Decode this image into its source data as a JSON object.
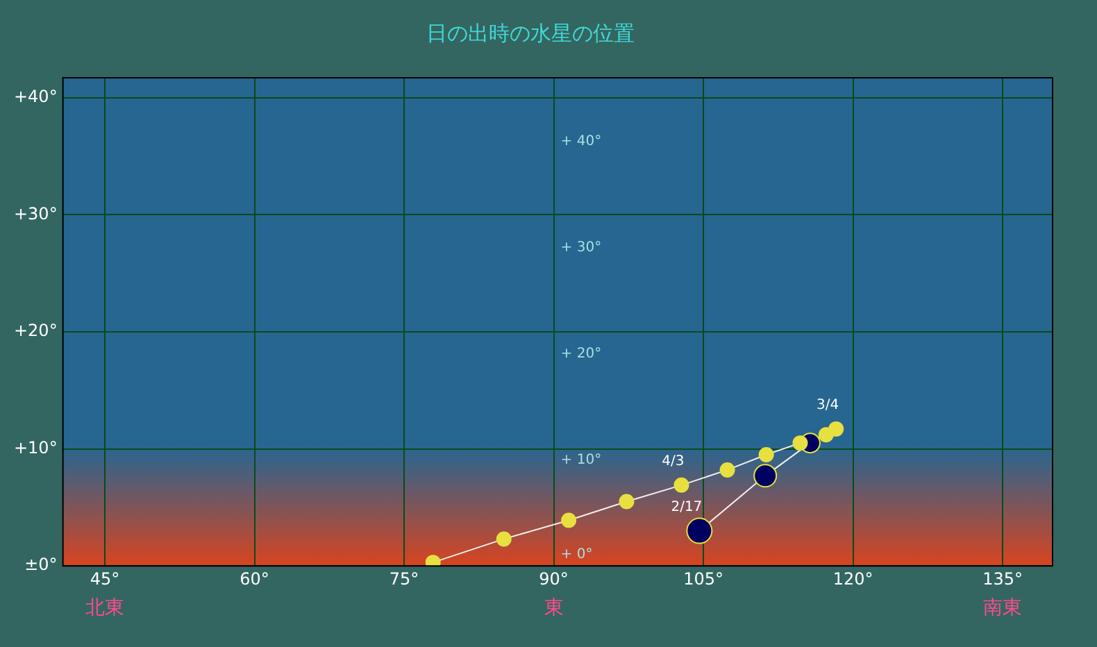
{
  "chart_data": {
    "type": "line",
    "title": "日の出時の水星の位置",
    "x": [
      104.6,
      111.2,
      115.7,
      118.3,
      117.3,
      114.7,
      111.3,
      107.4,
      102.8,
      97.3,
      91.5,
      85.0,
      77.9
    ],
    "series": [
      {
        "color": "#f0f0f0",
        "values": [
          3.0,
          7.7,
          10.5,
          11.7,
          11.2,
          10.5,
          9.5,
          8.2,
          6.9,
          5.5,
          3.9,
          2.3,
          0.3
        ],
        "colors": [
          "#000060",
          "#000060",
          "#000060",
          "#e8e040",
          "#e8e040",
          "#e8e040",
          "#e8e040",
          "#e8e040",
          "#e8e040",
          "#e8e040",
          "#e8e040",
          "#e8e040",
          "#e8e040"
        ]
      }
    ],
    "xlim": [
      40.8,
      140
    ],
    "xticks": [
      {
        "value": 45,
        "label": "45°"
      },
      {
        "value": 60,
        "label": "60°"
      },
      {
        "value": 75,
        "label": "75°"
      },
      {
        "value": 90,
        "label": "90°"
      },
      {
        "value": 105,
        "label": "105°"
      },
      {
        "value": 120,
        "label": "120°"
      },
      {
        "value": 135,
        "label": "135°"
      }
    ],
    "ylim": [
      0,
      41.7
    ],
    "yticks": [
      {
        "value": 0,
        "label": "±0°"
      },
      {
        "value": 10,
        "label": "+10°"
      },
      {
        "value": 20,
        "label": "+20°"
      },
      {
        "value": 30,
        "label": "+30°"
      },
      {
        "value": 40,
        "label": "+40°"
      }
    ],
    "y2lim": [
      0,
      46
    ],
    "y2ticks": [
      {
        "value": 0,
        "label": "+ 0°"
      },
      {
        "value": 10,
        "label": "+ 10°"
      },
      {
        "value": 20,
        "label": "+ 20°"
      },
      {
        "value": 30,
        "label": "+ 30°"
      },
      {
        "value": 40,
        "label": "+ 40°"
      }
    ],
    "grid": true,
    "marker": "circle",
    "legend": false,
    "annotations": [
      {
        "text": "2/17",
        "x": 104.6,
        "y": 3.0
      },
      {
        "text": "3/4",
        "x": 118.3,
        "y": 11.7
      },
      {
        "text": "4/3",
        "x": 102.8,
        "y": 6.9
      },
      "北東",
      "東",
      "南東"
    ]
  }
}
